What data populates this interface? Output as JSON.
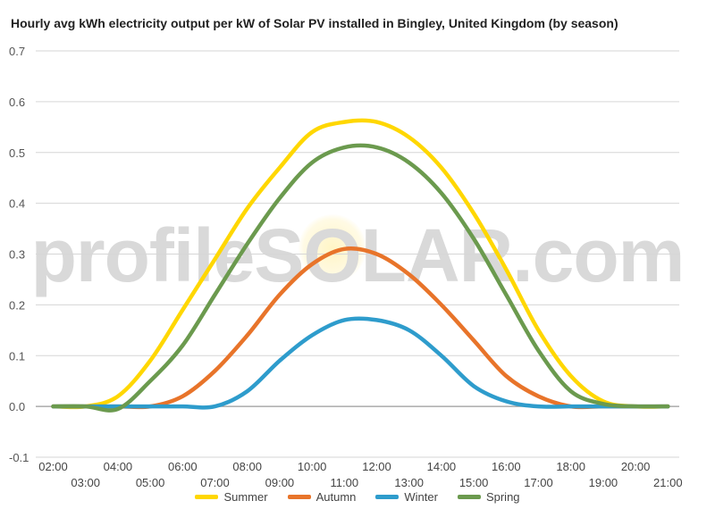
{
  "chart_data": {
    "type": "line",
    "title": "Hourly avg kWh electricity output per kW of Solar PV installed in Bingley, United Kingdom (by season)",
    "watermark": "profileSOLAR.com",
    "xlabel": "",
    "ylabel": "",
    "ylim": [
      -0.1,
      0.7
    ],
    "yticks": [
      "0.7",
      "0.6",
      "0.5",
      "0.4",
      "0.3",
      "0.2",
      "0.1",
      "0.0",
      "-0.1"
    ],
    "xticks_top": [
      "02:00",
      "04:00",
      "06:00",
      "08:00",
      "10:00",
      "12:00",
      "14:00",
      "16:00",
      "18:00",
      "20:00"
    ],
    "xticks_bottom": [
      "03:00",
      "05:00",
      "07:00",
      "09:00",
      "11:00",
      "13:00",
      "15:00",
      "17:00",
      "19:00",
      "21:00"
    ],
    "x": [
      "02:00",
      "03:00",
      "04:00",
      "05:00",
      "06:00",
      "07:00",
      "08:00",
      "09:00",
      "10:00",
      "11:00",
      "12:00",
      "13:00",
      "14:00",
      "15:00",
      "16:00",
      "17:00",
      "18:00",
      "19:00",
      "20:00",
      "21:00"
    ],
    "legend_position": "bottom",
    "grid": true,
    "series": [
      {
        "name": "Summer",
        "color": "#ffd700",
        "values": [
          0.0,
          0.0,
          0.02,
          0.09,
          0.19,
          0.29,
          0.39,
          0.47,
          0.54,
          0.56,
          0.56,
          0.53,
          0.47,
          0.38,
          0.27,
          0.15,
          0.06,
          0.01,
          0.0,
          0.0
        ]
      },
      {
        "name": "Autumn",
        "color": "#e8742a",
        "values": [
          0.0,
          0.0,
          0.0,
          0.0,
          0.02,
          0.07,
          0.14,
          0.22,
          0.28,
          0.31,
          0.3,
          0.26,
          0.2,
          0.13,
          0.06,
          0.02,
          0.0,
          0.0,
          0.0,
          0.0
        ]
      },
      {
        "name": "Winter",
        "color": "#2e9ccc",
        "values": [
          0.0,
          0.0,
          0.0,
          0.0,
          0.0,
          0.0,
          0.03,
          0.09,
          0.14,
          0.17,
          0.17,
          0.15,
          0.1,
          0.04,
          0.01,
          0.0,
          0.0,
          0.0,
          0.0,
          0.0
        ]
      },
      {
        "name": "Spring",
        "color": "#6b9a4e",
        "values": [
          0.0,
          0.0,
          -0.005,
          0.05,
          0.12,
          0.22,
          0.32,
          0.41,
          0.48,
          0.51,
          0.51,
          0.48,
          0.42,
          0.33,
          0.22,
          0.11,
          0.03,
          0.005,
          0.0,
          0.0
        ]
      }
    ]
  }
}
